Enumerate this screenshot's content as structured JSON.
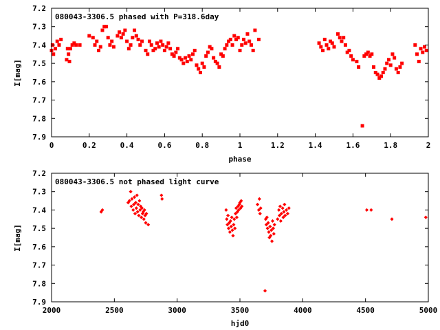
{
  "chart_data": [
    {
      "type": "scatter",
      "title": "080043-3306.5 phased with P=318.6day",
      "xlabel": "phase",
      "ylabel": "I[mag]",
      "xlim": [
        0,
        2
      ],
      "ylim": [
        7.9,
        7.2
      ],
      "y_inverted": true,
      "x_ticks": [
        0,
        0.2,
        0.4,
        0.6,
        0.8,
        1,
        1.2,
        1.4,
        1.6,
        1.8,
        2
      ],
      "x_tick_labels": [
        "0",
        "0.2",
        "0.4",
        "0.6",
        "0.8",
        "1",
        "1.2",
        "1.4",
        "1.6",
        "1.8",
        "2"
      ],
      "y_ticks": [
        7.2,
        7.3,
        7.4,
        7.5,
        7.6,
        7.7,
        7.8,
        7.9
      ],
      "y_tick_labels": [
        "7.2",
        "7.3",
        "7.4",
        "7.5",
        "7.6",
        "7.7",
        "7.8",
        "7.9"
      ],
      "grid": false,
      "legend": "none",
      "marker": "filled-square",
      "series": [
        {
          "color": "#ff0000",
          "points": [
            [
              0.0,
              7.43
            ],
            [
              0.005,
              7.4
            ],
            [
              0.01,
              7.45
            ],
            [
              0.02,
              7.42
            ],
            [
              0.03,
              7.38
            ],
            [
              0.04,
              7.4
            ],
            [
              0.05,
              7.37
            ],
            [
              0.08,
              7.48
            ],
            [
              0.085,
              7.42
            ],
            [
              0.09,
              7.45
            ],
            [
              0.095,
              7.49
            ],
            [
              0.1,
              7.42
            ],
            [
              0.11,
              7.4
            ],
            [
              0.12,
              7.39
            ],
            [
              0.13,
              7.4
            ],
            [
              0.15,
              7.4
            ],
            [
              0.2,
              7.35
            ],
            [
              0.22,
              7.36
            ],
            [
              0.23,
              7.4
            ],
            [
              0.24,
              7.38
            ],
            [
              0.25,
              7.43
            ],
            [
              0.26,
              7.41
            ],
            [
              0.27,
              7.32
            ],
            [
              0.28,
              7.3
            ],
            [
              0.29,
              7.3
            ],
            [
              0.3,
              7.36
            ],
            [
              0.31,
              7.4
            ],
            [
              0.32,
              7.38
            ],
            [
              0.33,
              7.41
            ],
            [
              0.35,
              7.35
            ],
            [
              0.36,
              7.33
            ],
            [
              0.37,
              7.36
            ],
            [
              0.38,
              7.34
            ],
            [
              0.39,
              7.32
            ],
            [
              0.4,
              7.38
            ],
            [
              0.41,
              7.42
            ],
            [
              0.42,
              7.4
            ],
            [
              0.43,
              7.36
            ],
            [
              0.44,
              7.32
            ],
            [
              0.45,
              7.35
            ],
            [
              0.46,
              7.37
            ],
            [
              0.47,
              7.4
            ],
            [
              0.48,
              7.38
            ],
            [
              0.5,
              7.43
            ],
            [
              0.51,
              7.45
            ],
            [
              0.52,
              7.38
            ],
            [
              0.53,
              7.4
            ],
            [
              0.54,
              7.43
            ],
            [
              0.55,
              7.42
            ],
            [
              0.56,
              7.39
            ],
            [
              0.57,
              7.41
            ],
            [
              0.58,
              7.38
            ],
            [
              0.59,
              7.4
            ],
            [
              0.6,
              7.43
            ],
            [
              0.61,
              7.41
            ],
            [
              0.62,
              7.39
            ],
            [
              0.63,
              7.42
            ],
            [
              0.64,
              7.45
            ],
            [
              0.65,
              7.46
            ],
            [
              0.66,
              7.44
            ],
            [
              0.67,
              7.42
            ],
            [
              0.68,
              7.47
            ],
            [
              0.69,
              7.48
            ],
            [
              0.7,
              7.5
            ],
            [
              0.71,
              7.47
            ],
            [
              0.72,
              7.49
            ],
            [
              0.73,
              7.46
            ],
            [
              0.74,
              7.48
            ],
            [
              0.75,
              7.45
            ],
            [
              0.76,
              7.43
            ],
            [
              0.77,
              7.51
            ],
            [
              0.78,
              7.53
            ],
            [
              0.79,
              7.55
            ],
            [
              0.8,
              7.5
            ],
            [
              0.81,
              7.52
            ],
            [
              0.82,
              7.46
            ],
            [
              0.83,
              7.44
            ],
            [
              0.84,
              7.41
            ],
            [
              0.85,
              7.42
            ],
            [
              0.86,
              7.47
            ],
            [
              0.87,
              7.49
            ],
            [
              0.88,
              7.5
            ],
            [
              0.89,
              7.52
            ],
            [
              0.9,
              7.45
            ],
            [
              0.91,
              7.46
            ],
            [
              0.92,
              7.42
            ],
            [
              0.93,
              7.4
            ],
            [
              0.94,
              7.38
            ],
            [
              0.95,
              7.37
            ],
            [
              0.96,
              7.4
            ],
            [
              0.97,
              7.35
            ],
            [
              0.98,
              7.37
            ],
            [
              0.99,
              7.36
            ],
            [
              1.0,
              7.43
            ],
            [
              1.01,
              7.4
            ],
            [
              1.02,
              7.37
            ],
            [
              1.03,
              7.39
            ],
            [
              1.04,
              7.34
            ],
            [
              1.05,
              7.38
            ],
            [
              1.06,
              7.4
            ],
            [
              1.07,
              7.43
            ],
            [
              1.08,
              7.32
            ],
            [
              1.1,
              7.37
            ],
            [
              1.42,
              7.39
            ],
            [
              1.43,
              7.41
            ],
            [
              1.44,
              7.43
            ],
            [
              1.45,
              7.37
            ],
            [
              1.46,
              7.4
            ],
            [
              1.47,
              7.42
            ],
            [
              1.48,
              7.38
            ],
            [
              1.49,
              7.39
            ],
            [
              1.5,
              7.41
            ],
            [
              1.52,
              7.34
            ],
            [
              1.53,
              7.36
            ],
            [
              1.54,
              7.38
            ],
            [
              1.55,
              7.36
            ],
            [
              1.56,
              7.4
            ],
            [
              1.57,
              7.44
            ],
            [
              1.58,
              7.43
            ],
            [
              1.59,
              7.46
            ],
            [
              1.6,
              7.48
            ],
            [
              1.62,
              7.49
            ],
            [
              1.63,
              7.52
            ],
            [
              1.65,
              7.84
            ],
            [
              1.66,
              7.46
            ],
            [
              1.67,
              7.45
            ],
            [
              1.68,
              7.44
            ],
            [
              1.69,
              7.46
            ],
            [
              1.7,
              7.45
            ],
            [
              1.71,
              7.52
            ],
            [
              1.72,
              7.55
            ],
            [
              1.73,
              7.56
            ],
            [
              1.74,
              7.58
            ],
            [
              1.75,
              7.57
            ],
            [
              1.76,
              7.55
            ],
            [
              1.77,
              7.53
            ],
            [
              1.78,
              7.5
            ],
            [
              1.79,
              7.48
            ],
            [
              1.8,
              7.51
            ],
            [
              1.81,
              7.45
            ],
            [
              1.82,
              7.47
            ],
            [
              1.83,
              7.53
            ],
            [
              1.84,
              7.55
            ],
            [
              1.85,
              7.52
            ],
            [
              1.86,
              7.5
            ],
            [
              1.93,
              7.4
            ],
            [
              1.94,
              7.45
            ],
            [
              1.95,
              7.49
            ],
            [
              1.96,
              7.42
            ],
            [
              1.97,
              7.44
            ],
            [
              1.98,
              7.41
            ],
            [
              1.99,
              7.43
            ]
          ]
        }
      ]
    },
    {
      "type": "scatter",
      "title": "080043-3306.5 not phased light curve",
      "xlabel": "hjd0",
      "ylabel": "I[mag]",
      "xlim": [
        2000,
        5000
      ],
      "ylim": [
        7.9,
        7.2
      ],
      "y_inverted": true,
      "x_ticks": [
        2000,
        2500,
        3000,
        3500,
        4000,
        4500,
        5000
      ],
      "x_tick_labels": [
        "2000",
        "2500",
        "3000",
        "3500",
        "4000",
        "4500",
        "5000"
      ],
      "y_ticks": [
        7.2,
        7.3,
        7.4,
        7.5,
        7.6,
        7.7,
        7.8,
        7.9
      ],
      "y_tick_labels": [
        "7.2",
        "7.3",
        "7.4",
        "7.5",
        "7.6",
        "7.7",
        "7.8",
        "7.9"
      ],
      "grid": false,
      "legend": "none",
      "marker": "diamond",
      "series": [
        {
          "color": "#ff0000",
          "points": [
            [
              2395,
              7.41
            ],
            [
              2405,
              7.4
            ],
            [
              2610,
              7.36
            ],
            [
              2620,
              7.35
            ],
            [
              2630,
              7.3
            ],
            [
              2635,
              7.38
            ],
            [
              2640,
              7.34
            ],
            [
              2650,
              7.4
            ],
            [
              2655,
              7.37
            ],
            [
              2660,
              7.33
            ],
            [
              2665,
              7.42
            ],
            [
              2670,
              7.36
            ],
            [
              2675,
              7.39
            ],
            [
              2680,
              7.32
            ],
            [
              2685,
              7.41
            ],
            [
              2690,
              7.37
            ],
            [
              2695,
              7.43
            ],
            [
              2700,
              7.35
            ],
            [
              2705,
              7.4
            ],
            [
              2710,
              7.38
            ],
            [
              2715,
              7.44
            ],
            [
              2720,
              7.39
            ],
            [
              2725,
              7.42
            ],
            [
              2730,
              7.41
            ],
            [
              2735,
              7.45
            ],
            [
              2740,
              7.4
            ],
            [
              2745,
              7.43
            ],
            [
              2750,
              7.47
            ],
            [
              2755,
              7.42
            ],
            [
              2770,
              7.48
            ],
            [
              2875,
              7.32
            ],
            [
              2880,
              7.34
            ],
            [
              3390,
              7.4
            ],
            [
              3395,
              7.45
            ],
            [
              3400,
              7.48
            ],
            [
              3405,
              7.43
            ],
            [
              3410,
              7.5
            ],
            [
              3415,
              7.47
            ],
            [
              3420,
              7.52
            ],
            [
              3425,
              7.46
            ],
            [
              3430,
              7.49
            ],
            [
              3435,
              7.44
            ],
            [
              3440,
              7.51
            ],
            [
              3445,
              7.54
            ],
            [
              3450,
              7.48
            ],
            [
              3455,
              7.45
            ],
            [
              3460,
              7.5
            ],
            [
              3465,
              7.42
            ],
            [
              3470,
              7.39
            ],
            [
              3475,
              7.44
            ],
            [
              3480,
              7.41
            ],
            [
              3485,
              7.38
            ],
            [
              3490,
              7.4
            ],
            [
              3495,
              7.37
            ],
            [
              3500,
              7.36
            ],
            [
              3505,
              7.39
            ],
            [
              3510,
              7.35
            ],
            [
              3515,
              7.38
            ],
            [
              3640,
              7.37
            ],
            [
              3650,
              7.4
            ],
            [
              3655,
              7.34
            ],
            [
              3660,
              7.42
            ],
            [
              3665,
              7.39
            ],
            [
              3700,
              7.84
            ],
            [
              3705,
              7.45
            ],
            [
              3710,
              7.48
            ],
            [
              3715,
              7.44
            ],
            [
              3720,
              7.5
            ],
            [
              3725,
              7.47
            ],
            [
              3730,
              7.52
            ],
            [
              3735,
              7.55
            ],
            [
              3740,
              7.49
            ],
            [
              3745,
              7.54
            ],
            [
              3750,
              7.51
            ],
            [
              3755,
              7.57
            ],
            [
              3760,
              7.46
            ],
            [
              3765,
              7.5
            ],
            [
              3770,
              7.53
            ],
            [
              3775,
              7.48
            ],
            [
              3800,
              7.45
            ],
            [
              3810,
              7.4
            ],
            [
              3815,
              7.43
            ],
            [
              3820,
              7.38
            ],
            [
              3825,
              7.46
            ],
            [
              3830,
              7.42
            ],
            [
              3840,
              7.39
            ],
            [
              3845,
              7.44
            ],
            [
              3850,
              7.41
            ],
            [
              3855,
              7.37
            ],
            [
              3860,
              7.43
            ],
            [
              3870,
              7.4
            ],
            [
              3880,
              7.42
            ],
            [
              3890,
              7.39
            ],
            [
              4510,
              7.4
            ],
            [
              4545,
              7.4
            ],
            [
              4710,
              7.45
            ],
            [
              4980,
              7.44
            ]
          ]
        }
      ]
    }
  ]
}
